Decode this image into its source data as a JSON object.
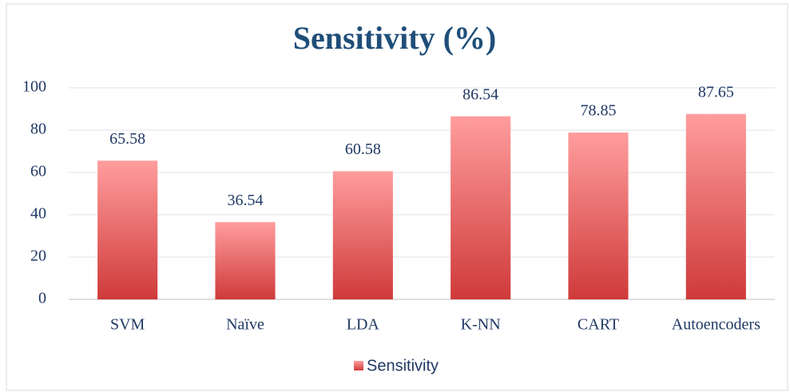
{
  "chart_data": {
    "type": "bar",
    "title": "Sensitivity (%)",
    "categories": [
      "SVM",
      "Naïve",
      "LDA",
      "K-NN",
      "CART",
      "Autoencoders"
    ],
    "series": [
      {
        "name": "Sensitivity",
        "color": [
          "#ff9d9d",
          "#cf3a3a"
        ],
        "values": [
          65.58,
          36.54,
          60.58,
          86.54,
          78.85,
          87.65
        ]
      }
    ],
    "ylim": [
      0,
      100
    ],
    "yticks": [
      0,
      20,
      40,
      60,
      80,
      100
    ],
    "grid": true,
    "legend": "bottom"
  }
}
